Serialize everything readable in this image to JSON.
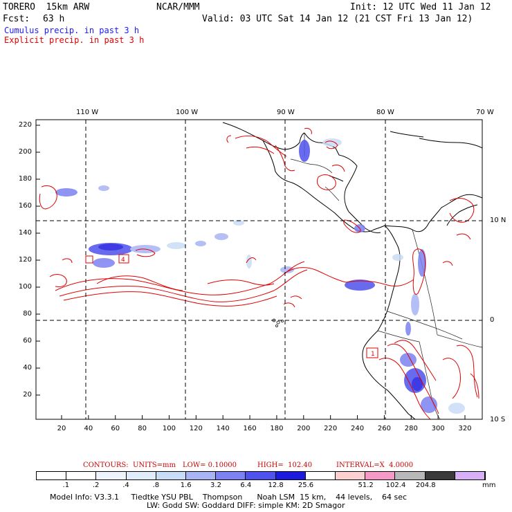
{
  "header": {
    "model": "TORERO  15km ARW",
    "org": "NCAR/MMM",
    "init": "Init: 12 UTC Wed 11 Jan 12",
    "fcst_label": "Fcst:",
    "fcst_value": "63 h",
    "valid": "Valid: 03 UTC Sat 14 Jan 12 (21 CST Fri 13 Jan 12)",
    "cumulus": "Cumulus precip. in past 3 h",
    "explicit": "Explicit precip. in past 3 h"
  },
  "colors": {
    "cumulus": "#1a1aff",
    "explicit": "#e00000",
    "contours_text": "#cc0000"
  },
  "map": {
    "top_lon_labels": [
      "110 W",
      "100 W",
      "90 W",
      "80 W",
      "70 W"
    ],
    "right_lat_labels": [
      "10 N",
      "0",
      "10 S"
    ],
    "left_grid_labels": [
      "220",
      "200",
      "180",
      "160",
      "140",
      "120",
      "100",
      "80",
      "60",
      "40",
      "20"
    ],
    "bottom_grid_labels": [
      "20",
      "40",
      "60",
      "80",
      "100",
      "120",
      "140",
      "160",
      "180",
      "200",
      "220",
      "240",
      "260",
      "280",
      "300",
      "320"
    ],
    "box_labels": [
      "4",
      "1"
    ]
  },
  "contours": {
    "label": "CONTOURS:",
    "units": "UNITS=mm",
    "low": "LOW= 0.10000",
    "high": "HIGH=  102.40",
    "interval": "INTERVAL=X  4.0000"
  },
  "colorbar": {
    "labels": [
      ".1",
      ".2",
      ".4",
      ".8",
      "1.6",
      "3.2",
      "6.4",
      "12.8",
      "25.6",
      "51.2",
      "102.4",
      "204.8"
    ],
    "unit": "mm",
    "colors": [
      "#ffffff",
      "#ffffff",
      "#eef4fc",
      "#e0ecfa",
      "#c9dcf6",
      "#a8b4f4",
      "#7c82f2",
      "#4f52ec",
      "#1d1ae0",
      "#ffffff",
      "#fcd0d0",
      "#f59ac6",
      "#b8b8b8",
      "#3a3a3a",
      "#d8b0f8"
    ]
  },
  "model_info": {
    "line1": "Model Info: V3.3.1     Tiedtke YSU PBL    Thompson      Noah LSM  15 km,    44 levels,    64 sec",
    "line2": "LW: Godd SW: Goddard DIFF: simple KM: 2D Smagor"
  }
}
